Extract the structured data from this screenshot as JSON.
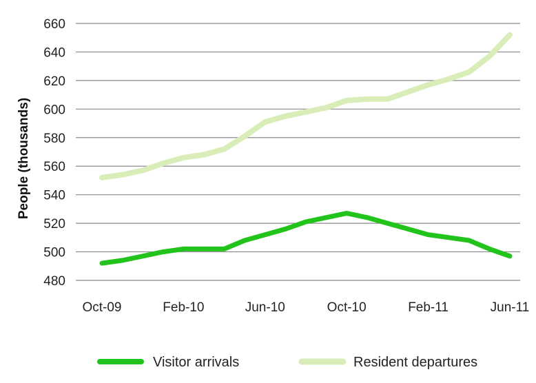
{
  "chart_data": {
    "type": "line",
    "ylabel": "People (thousands)",
    "ylim": [
      480,
      660
    ],
    "yticks": [
      480,
      500,
      520,
      540,
      560,
      580,
      600,
      620,
      640,
      660
    ],
    "grid": true,
    "legend": "bottom",
    "x": [
      "Oct-09",
      "Nov-09",
      "Dec-09",
      "Jan-10",
      "Feb-10",
      "Mar-10",
      "Apr-10",
      "May-10",
      "Jun-10",
      "Jul-10",
      "Aug-10",
      "Sep-10",
      "Oct-10",
      "Nov-10",
      "Dec-10",
      "Jan-11",
      "Feb-11",
      "Mar-11",
      "Apr-11",
      "May-11",
      "Jun-11"
    ],
    "xtick_labels": [
      "Oct-09",
      "Feb-10",
      "Jun-10",
      "Oct-10",
      "Feb-11",
      "Jun-11"
    ],
    "series": [
      {
        "name": "Visitor arrivals",
        "color": "#22c41c",
        "values": [
          492,
          494,
          497,
          500,
          502,
          502,
          502,
          508,
          512,
          516,
          521,
          524,
          527,
          524,
          520,
          516,
          512,
          510,
          508,
          502,
          497
        ]
      },
      {
        "name": "Resident departures",
        "color": "#d9edb8",
        "values": [
          552,
          554,
          557,
          562,
          566,
          568,
          572,
          581,
          591,
          595,
          598,
          601,
          606,
          607,
          607,
          612,
          617,
          621,
          626,
          637,
          652
        ]
      }
    ]
  }
}
